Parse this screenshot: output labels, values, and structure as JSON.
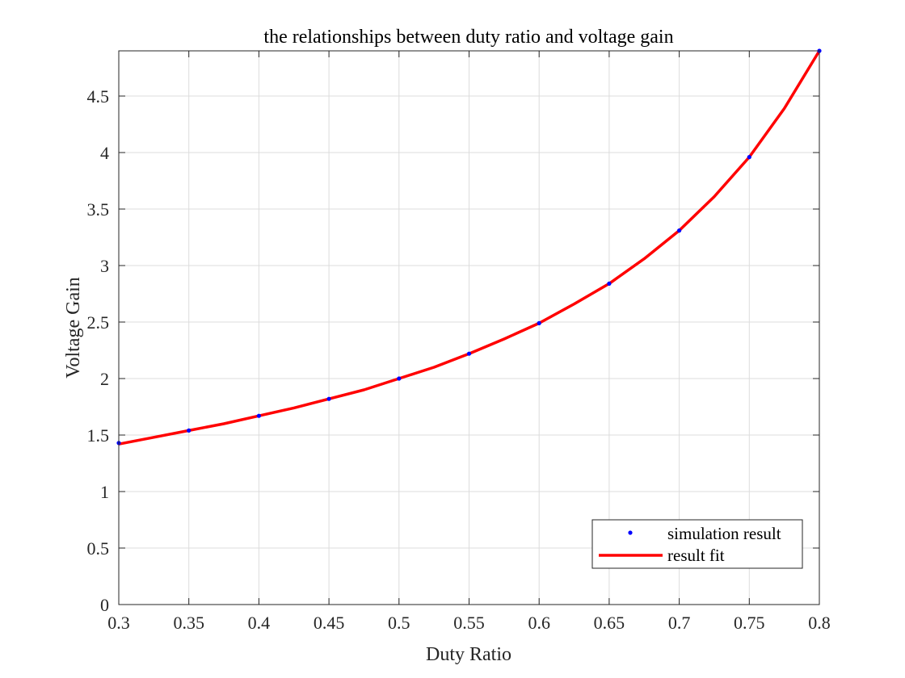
{
  "chart_data": {
    "type": "line",
    "title": "the relationships between duty ratio and voltage gain",
    "xlabel": "Duty Ratio",
    "ylabel": "Voltage Gain",
    "xlim": [
      0.3,
      0.8
    ],
    "ylim": [
      0,
      4.9
    ],
    "xticks": [
      0.3,
      0.35,
      0.4,
      0.45,
      0.5,
      0.55,
      0.6,
      0.65,
      0.7,
      0.75,
      0.8
    ],
    "xtick_labels": [
      "0.3",
      "0.35",
      "0.4",
      "0.45",
      "0.5",
      "0.55",
      "0.6",
      "0.65",
      "0.7",
      "0.75",
      "0.8"
    ],
    "yticks": [
      0,
      0.5,
      1,
      1.5,
      2,
      2.5,
      3,
      3.5,
      4,
      4.5
    ],
    "ytick_labels": [
      "0",
      "0.5",
      "1",
      "1.5",
      "2",
      "2.5",
      "3",
      "3.5",
      "4",
      "4.5"
    ],
    "grid": true,
    "legend_position": "bottom-right",
    "series": [
      {
        "name": "simulation result",
        "style": "markers",
        "color": "#0000ff",
        "x": [
          0.3,
          0.35,
          0.4,
          0.45,
          0.5,
          0.55,
          0.6,
          0.65,
          0.7,
          0.75,
          0.8
        ],
        "y": [
          1.43,
          1.54,
          1.67,
          1.82,
          2.0,
          2.22,
          2.49,
          2.84,
          3.31,
          3.96,
          4.9
        ]
      },
      {
        "name": "result fit",
        "style": "line",
        "color": "#ff0000",
        "x": [
          0.3,
          0.325,
          0.35,
          0.375,
          0.4,
          0.425,
          0.45,
          0.475,
          0.5,
          0.525,
          0.55,
          0.575,
          0.6,
          0.625,
          0.65,
          0.675,
          0.7,
          0.725,
          0.75,
          0.775,
          0.8
        ],
        "y": [
          1.42,
          1.48,
          1.54,
          1.6,
          1.67,
          1.74,
          1.82,
          1.9,
          2.0,
          2.1,
          2.22,
          2.35,
          2.49,
          2.66,
          2.84,
          3.06,
          3.31,
          3.61,
          3.96,
          4.39,
          4.9
        ]
      }
    ]
  }
}
